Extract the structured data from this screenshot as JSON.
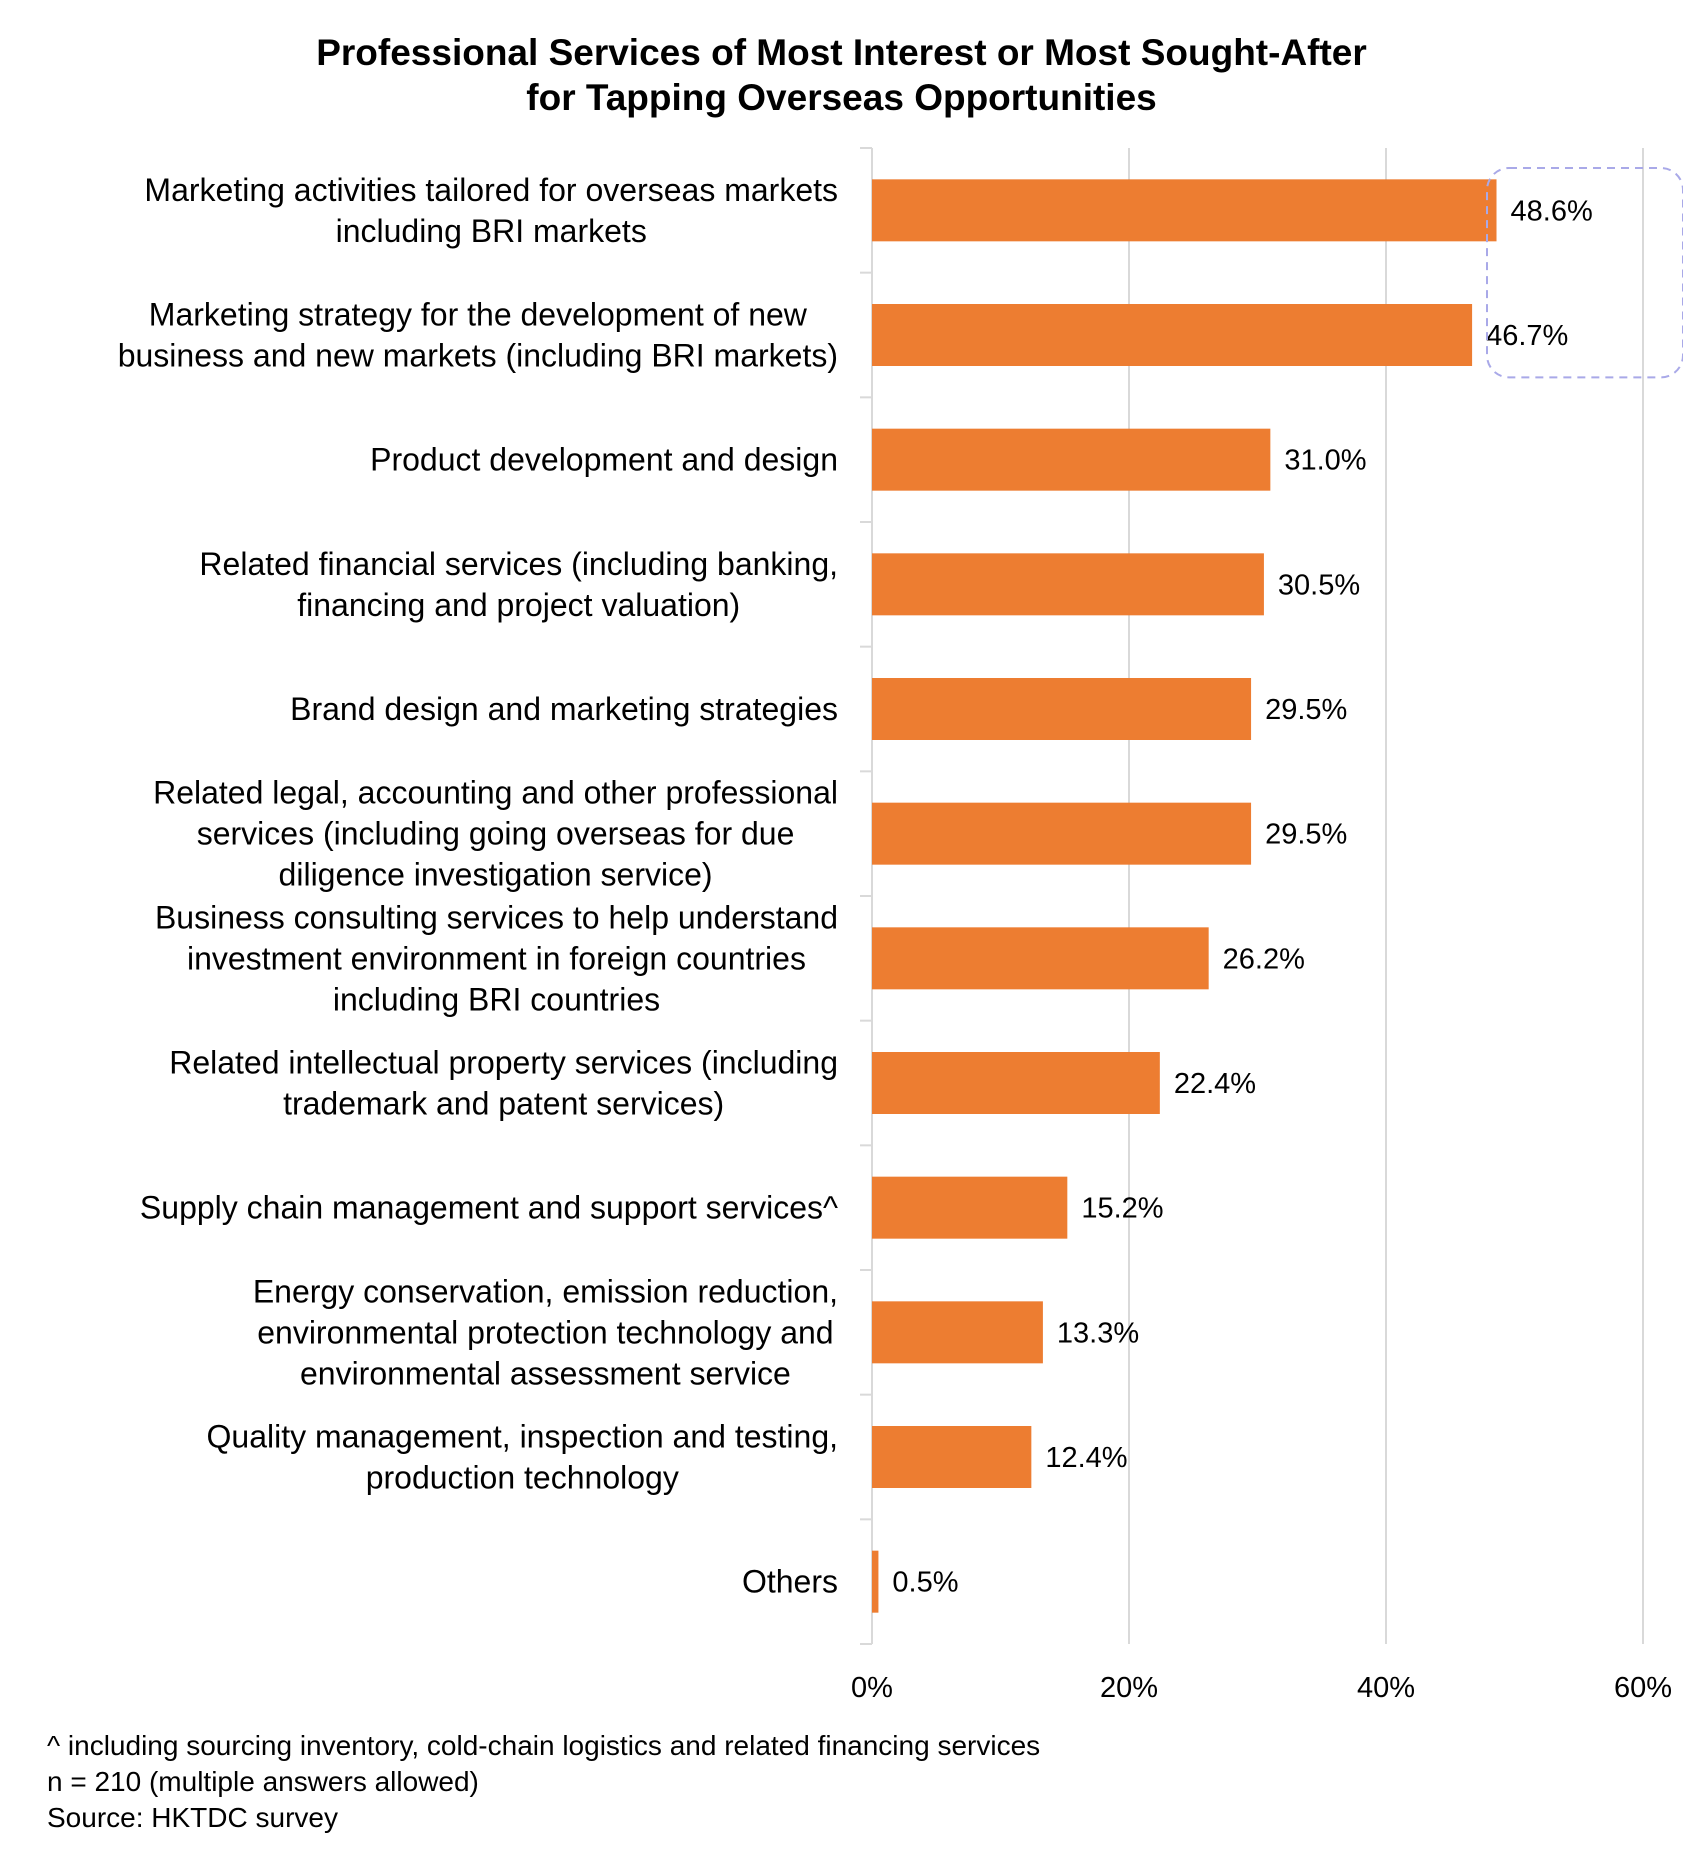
{
  "chart_data": {
    "type": "bar",
    "orientation": "horizontal",
    "title": "Professional Services of Most Interest or Most Sought-After for Tapping Overseas Opportunities",
    "title_lines": [
      "Professional Services of Most Interest or Most Sought-After",
      "for Tapping Overseas Opportunities"
    ],
    "categories": [
      [
        "Marketing activities tailored for overseas markets",
        "including BRI markets"
      ],
      [
        "Marketing strategy for the development of new",
        "business and new markets (including BRI markets)"
      ],
      [
        "Product development and design"
      ],
      [
        "Related financial services (including banking,",
        "financing and project valuation)"
      ],
      [
        "Brand design and marketing strategies"
      ],
      [
        "Related legal, accounting and other professional",
        "services (including going overseas for due",
        "diligence investigation service)"
      ],
      [
        "Business consulting services to help understand",
        "investment environment in foreign countries",
        "including BRI countries"
      ],
      [
        "Related intellectual property services (including",
        "trademark and patent services)"
      ],
      [
        "Supply chain management and support services^"
      ],
      [
        "Energy conservation, emission reduction,",
        "environmental protection technology and",
        "environmental assessment service"
      ],
      [
        "Quality management, inspection and testing,",
        "production technology"
      ],
      [
        "Others"
      ]
    ],
    "values": [
      48.6,
      46.7,
      31.0,
      30.5,
      29.5,
      29.5,
      26.2,
      22.4,
      15.2,
      13.3,
      12.4,
      0.5
    ],
    "value_labels": [
      "48.6%",
      "46.7%",
      "31.0%",
      "30.5%",
      "29.5%",
      "29.5%",
      "26.2%",
      "22.4%",
      "15.2%",
      "13.3%",
      "12.4%",
      "0.5%"
    ],
    "xlim": [
      0,
      60
    ],
    "xticks": [
      0,
      20,
      40,
      60
    ],
    "xtick_labels": [
      "0%",
      "20%",
      "40%",
      "60%"
    ],
    "xlabel": "",
    "ylabel": "",
    "grid": true,
    "highlight_indices": [
      0,
      1
    ],
    "bar_color": "#ED7D31",
    "grid_color": "#D9D9D9",
    "highlight_color": "#A9A9E8"
  },
  "footnotes": [
    "^ including sourcing inventory, cold-chain logistics and related financing services",
    "n = 210 (multiple answers allowed)",
    "Source:  HKTDC survey"
  ]
}
